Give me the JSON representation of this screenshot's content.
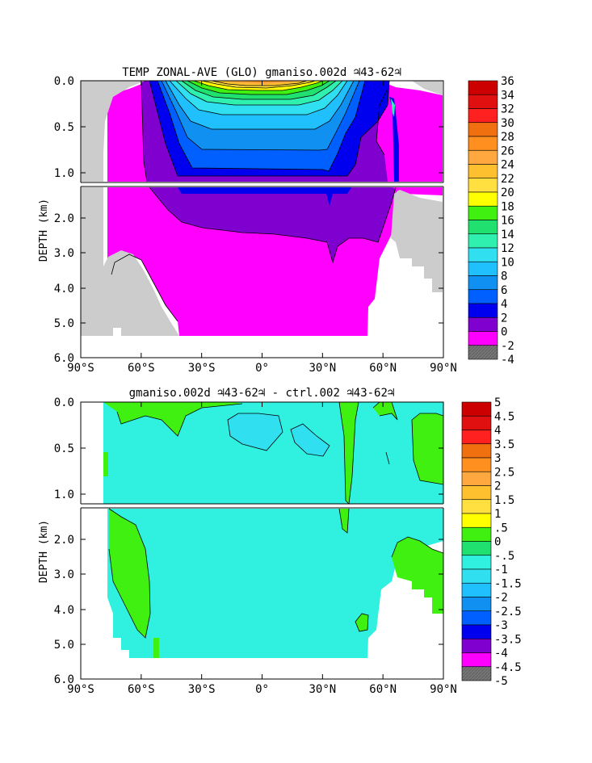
{
  "chart_data": [
    {
      "type": "heatmap",
      "title": "TEMP ZONAL-AVE (GLO) gmaniso.002d ♃43-62♃",
      "xlabel": "",
      "ylabel": "DEPTH (km)",
      "x_tick_labels": [
        "90°S",
        "60°S",
        "30°S",
        "0°",
        "30°N",
        "60°N",
        "90°N"
      ],
      "y_tick_labels_upper": [
        "0.0",
        "0.5",
        "1.0"
      ],
      "y_tick_labels_lower": [
        "2.0",
        "3.0",
        "4.0",
        "5.0",
        "6.0"
      ],
      "xlim": [
        -90,
        90
      ],
      "ylim": [
        6.0,
        0.0
      ],
      "colorbar": {
        "levels": [
          "36",
          "34",
          "32",
          "30",
          "28",
          "26",
          "24",
          "22",
          "20",
          "18",
          "16",
          "14",
          "12",
          "10",
          "8",
          "6",
          "4",
          "2",
          "0",
          "-2",
          "-4"
        ],
        "colors": [
          "#cc0000",
          "#e01010",
          "#ff2020",
          "#f07010",
          "#ff9020",
          "#ffa840",
          "#ffc030",
          "#ffe040",
          "#ffff00",
          "#40f010",
          "#20e070",
          "#30f0b0",
          "#30e0f0",
          "#20c0ff",
          "#1090f0",
          "#0060ff",
          "#0000ee",
          "#8000d0",
          "#ff00ff",
          "#cccccc",
          "#777777"
        ]
      },
      "regions": {
        "land_color": "#cccccc",
        "deep_water_level": "0 to 2",
        "southern_ocean_level": "2 to 4",
        "surface_max_level": "28 to 30"
      }
    },
    {
      "type": "heatmap",
      "title": "gmaniso.002d ♃43-62♃ - ctrl.002 ♃43-62♃",
      "xlabel": "",
      "ylabel": "DEPTH (km)",
      "x_tick_labels": [
        "90°S",
        "60°S",
        "30°S",
        "0°",
        "30°N",
        "60°N",
        "90°N"
      ],
      "y_tick_labels_upper": [
        "0.0",
        "0.5",
        "1.0"
      ],
      "y_tick_labels_lower": [
        "2.0",
        "3.0",
        "4.0",
        "5.0",
        "6.0"
      ],
      "xlim": [
        -90,
        90
      ],
      "ylim": [
        6.0,
        0.0
      ],
      "colorbar": {
        "levels": [
          "5",
          "4.5",
          "4",
          "3.5",
          "3",
          "2.5",
          "2",
          "1.5",
          "1",
          ".5",
          "0",
          "-.5",
          "-1",
          "-1.5",
          "-2",
          "-2.5",
          "-3",
          "-3.5",
          "-4",
          "-4.5",
          "-5"
        ],
        "colors": [
          "#cc0000",
          "#e01010",
          "#ff2020",
          "#f07010",
          "#ff9020",
          "#ffa840",
          "#ffc030",
          "#ffe040",
          "#ffff00",
          "#40f010",
          "#20e070",
          "#30f0e0",
          "#30e0f0",
          "#20c0ff",
          "#1090f0",
          "#0060ff",
          "#0000ee",
          "#8000d0",
          "#ff00ff",
          "#cccccc",
          "#777777"
        ]
      },
      "regions": {
        "dominant_level": "-.5 to 0",
        "positive_patch_level": "0 to .5",
        "negative_patch_level": "-1 to -.5"
      }
    }
  ]
}
